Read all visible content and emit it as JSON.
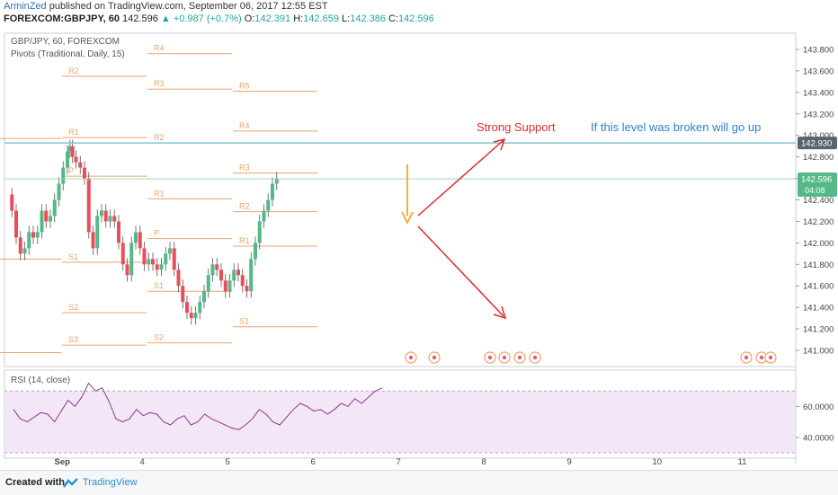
{
  "header": {
    "author": "ArminZed",
    "published": "published on TradingView.com, September 06, 2017 12:55 EST",
    "symbol": "FOREXCOM:GBPJPY, 60",
    "last": "142.596",
    "change": "+0.987 (+0.7%)",
    "o_label": "O:",
    "o": "142.391",
    "h_label": "H:",
    "h": "142.659",
    "l_label": "L:",
    "l": "142.386",
    "c_label": "C:",
    "c": "142.596"
  },
  "legend": {
    "line1": "GBP/JPY, 60, FOREXCOM",
    "line2": "Pivots (Traditional, Daily, 15)"
  },
  "rsi_title": "RSI (14, close)",
  "annotations": {
    "support": "Strong Support",
    "broken": "If this level was broken will go up"
  },
  "footer": {
    "created": "Created with",
    "brand": "TradingView"
  },
  "colors": {
    "up": "#53b987",
    "down": "#eb4d5c",
    "pivot": "#e8a46b",
    "support_line": "#7fc7d3",
    "arrow_red": "#e02b2b",
    "arrow_orange": "#f5a623",
    "rsi_line": "#8b3a8b",
    "rsi_band": "#f3e6f7"
  },
  "chart_data": {
    "type": "line",
    "title": "GBP/JPY, 60, FOREXCOM",
    "ylim": [
      140.85,
      143.95
    ],
    "y_ticks": [
      "143.800",
      "143.600",
      "143.400",
      "143.200",
      "143.000",
      "142.800",
      "142.600",
      "142.400",
      "142.200",
      "142.000",
      "141.800",
      "141.600",
      "141.400",
      "141.200",
      "141.000"
    ],
    "last_price_label": "142.596",
    "last_price_time": "04:08",
    "support_level": 142.93,
    "support_label": "142.930",
    "x_tick_labels": [
      {
        "label": "Sep",
        "x": 0.5
      },
      {
        "label": "4",
        "x": 1.5
      },
      {
        "label": "5",
        "x": 2.5
      },
      {
        "label": "6",
        "x": 3.5
      },
      {
        "label": "7",
        "x": 4.5
      },
      {
        "label": "8",
        "x": 5.5
      },
      {
        "label": "9",
        "x": 6.5
      },
      {
        "label": "10",
        "x": 7.5
      },
      {
        "label": "11",
        "x": 8.5
      }
    ],
    "close_series": [
      {
        "x": -0.1,
        "y": 142.45
      },
      {
        "x": -0.05,
        "y": 142.3
      },
      {
        "x": 0.0,
        "y": 142.05
      },
      {
        "x": 0.05,
        "y": 141.9
      },
      {
        "x": 0.1,
        "y": 141.95
      },
      {
        "x": 0.15,
        "y": 142.1
      },
      {
        "x": 0.2,
        "y": 142.05
      },
      {
        "x": 0.25,
        "y": 142.1
      },
      {
        "x": 0.3,
        "y": 142.3
      },
      {
        "x": 0.35,
        "y": 142.2
      },
      {
        "x": 0.4,
        "y": 142.25
      },
      {
        "x": 0.45,
        "y": 142.4
      },
      {
        "x": 0.5,
        "y": 142.55
      },
      {
        "x": 0.55,
        "y": 142.7
      },
      {
        "x": 0.6,
        "y": 142.85
      },
      {
        "x": 0.63,
        "y": 142.9
      },
      {
        "x": 0.66,
        "y": 142.8
      },
      {
        "x": 0.7,
        "y": 142.75
      },
      {
        "x": 0.75,
        "y": 142.7
      },
      {
        "x": 0.8,
        "y": 142.6
      },
      {
        "x": 0.85,
        "y": 142.1
      },
      {
        "x": 0.9,
        "y": 141.95
      },
      {
        "x": 0.95,
        "y": 142.25
      },
      {
        "x": 1.0,
        "y": 142.3
      },
      {
        "x": 1.05,
        "y": 142.2
      },
      {
        "x": 1.1,
        "y": 142.25
      },
      {
        "x": 1.15,
        "y": 142.2
      },
      {
        "x": 1.2,
        "y": 142.0
      },
      {
        "x": 1.25,
        "y": 141.8
      },
      {
        "x": 1.3,
        "y": 141.7
      },
      {
        "x": 1.35,
        "y": 142.0
      },
      {
        "x": 1.4,
        "y": 142.1
      },
      {
        "x": 1.45,
        "y": 141.95
      },
      {
        "x": 1.5,
        "y": 141.8
      },
      {
        "x": 1.55,
        "y": 141.85
      },
      {
        "x": 1.6,
        "y": 141.8
      },
      {
        "x": 1.65,
        "y": 141.75
      },
      {
        "x": 1.7,
        "y": 141.8
      },
      {
        "x": 1.75,
        "y": 141.9
      },
      {
        "x": 1.8,
        "y": 141.95
      },
      {
        "x": 1.85,
        "y": 141.75
      },
      {
        "x": 1.9,
        "y": 141.6
      },
      {
        "x": 1.95,
        "y": 141.45
      },
      {
        "x": 2.0,
        "y": 141.35
      },
      {
        "x": 2.05,
        "y": 141.3
      },
      {
        "x": 2.1,
        "y": 141.35
      },
      {
        "x": 2.15,
        "y": 141.45
      },
      {
        "x": 2.2,
        "y": 141.55
      },
      {
        "x": 2.25,
        "y": 141.7
      },
      {
        "x": 2.3,
        "y": 141.8
      },
      {
        "x": 2.35,
        "y": 141.75
      },
      {
        "x": 2.4,
        "y": 141.65
      },
      {
        "x": 2.45,
        "y": 141.55
      },
      {
        "x": 2.5,
        "y": 141.65
      },
      {
        "x": 2.55,
        "y": 141.75
      },
      {
        "x": 2.6,
        "y": 141.7
      },
      {
        "x": 2.65,
        "y": 141.6
      },
      {
        "x": 2.7,
        "y": 141.55
      },
      {
        "x": 2.75,
        "y": 141.85
      },
      {
        "x": 2.8,
        "y": 142.0
      },
      {
        "x": 2.85,
        "y": 142.2
      },
      {
        "x": 2.9,
        "y": 142.3
      },
      {
        "x": 2.95,
        "y": 142.4
      },
      {
        "x": 3.0,
        "y": 142.55
      },
      {
        "x": 3.05,
        "y": 142.6
      }
    ],
    "rsi_series": [
      58,
      52,
      50,
      53,
      56,
      55,
      50,
      57,
      64,
      60,
      66,
      75,
      70,
      72,
      63,
      52,
      50,
      52,
      58,
      54,
      56,
      55,
      50,
      48,
      52,
      54,
      48,
      50,
      55,
      52,
      50,
      48,
      46,
      45,
      48,
      52,
      58,
      55,
      50,
      48,
      53,
      58,
      62,
      60,
      57,
      58,
      55,
      58,
      62,
      60,
      65,
      62,
      66,
      70,
      72
    ],
    "rsi_ylim": [
      30,
      80
    ],
    "rsi_ticks": [
      "60.0000",
      "40.0000"
    ]
  }
}
